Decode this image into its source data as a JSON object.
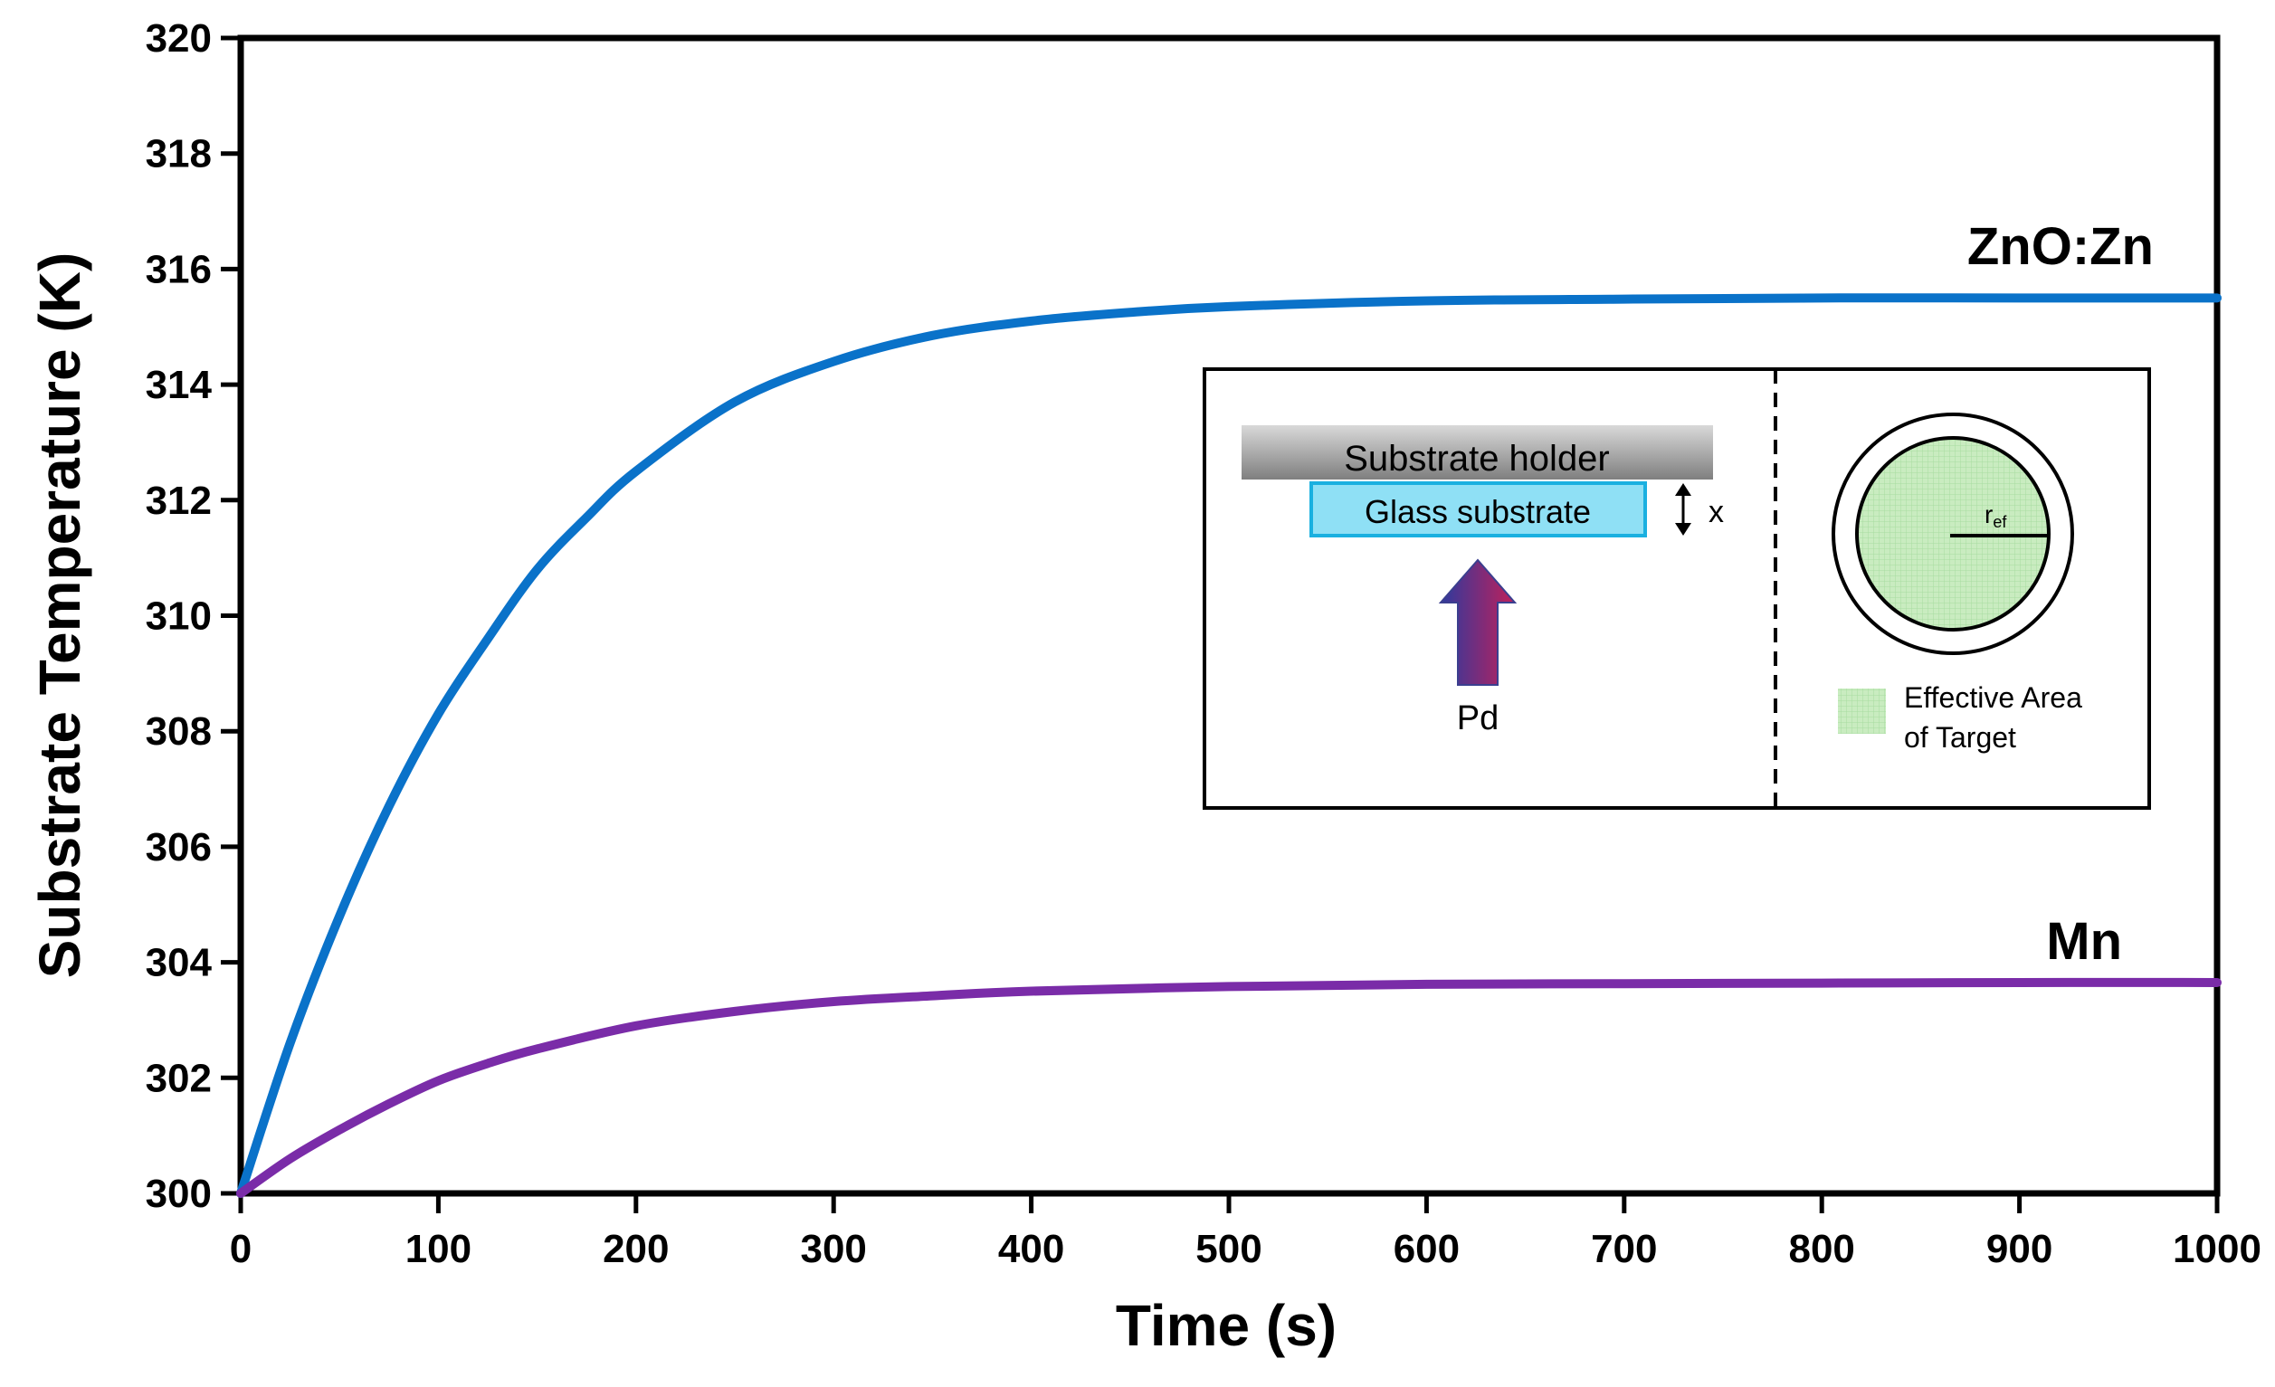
{
  "chart_data": {
    "type": "line",
    "xlabel": "Time (s)",
    "ylabel": "Substrate Temperature (K)",
    "xlim": [
      0,
      1000
    ],
    "ylim": [
      300,
      320
    ],
    "xticks": [
      "0",
      "100",
      "200",
      "300",
      "400",
      "500",
      "600",
      "700",
      "800",
      "900",
      "1000"
    ],
    "yticks": [
      "300",
      "302",
      "304",
      "306",
      "308",
      "310",
      "312",
      "314",
      "316",
      "318",
      "320"
    ],
    "grid": false,
    "series": [
      {
        "name": "ZnO:Zn",
        "color": "#0a72c9",
        "x": [
          0,
          25,
          50,
          75,
          100,
          125,
          150,
          175,
          200,
          250,
          300,
          350,
          400,
          450,
          500,
          600,
          700,
          800,
          900,
          1000
        ],
        "y": [
          300.0,
          302.6,
          304.8,
          306.7,
          308.3,
          309.6,
          310.8,
          311.7,
          312.5,
          313.7,
          314.4,
          314.85,
          315.1,
          315.25,
          315.35,
          315.45,
          315.48,
          315.5,
          315.5,
          315.5
        ]
      },
      {
        "name": "Mn",
        "color": "#7a2ca8",
        "x": [
          0,
          25,
          50,
          75,
          100,
          125,
          150,
          200,
          250,
          300,
          350,
          400,
          500,
          600,
          700,
          800,
          900,
          1000
        ],
        "y": [
          300.0,
          300.6,
          301.1,
          301.55,
          301.95,
          302.25,
          302.5,
          302.9,
          303.15,
          303.32,
          303.42,
          303.5,
          303.58,
          303.62,
          303.63,
          303.64,
          303.65,
          303.65
        ]
      }
    ],
    "annotations": {
      "zno_label": "ZnO:Zn",
      "mn_label": "Mn"
    },
    "inset": {
      "substrate_holder": "Substrate holder",
      "glass_substrate": "Glass substrate",
      "distance_label": "x",
      "power_label": "Pd",
      "radius_label_main": "r",
      "radius_label_sub": "ef",
      "legend_line1": "Effective Area",
      "legend_line2": "of Target",
      "colors": {
        "holder_top": "#d9d9d9",
        "holder_bottom": "#7f7f7f",
        "glass_fill": "#8fe0f5",
        "glass_border": "#1ab0e0",
        "target_fill": "#c9ecc0",
        "arrow_top": "#c0205a",
        "arrow_bottom": "#2e3a9e"
      }
    }
  }
}
